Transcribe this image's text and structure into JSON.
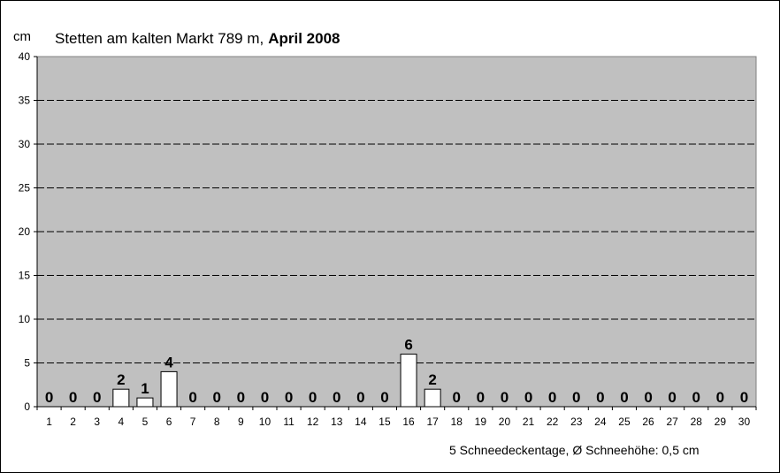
{
  "chart_data": {
    "type": "bar",
    "title_regular": "Stetten am kalten Markt 789 m,",
    "title_bold": "April 2008",
    "ylabel": "cm",
    "xlabel": "",
    "ylim": [
      0,
      40
    ],
    "yticks": [
      0,
      5,
      10,
      15,
      20,
      25,
      30,
      35,
      40
    ],
    "grid": "horizontal dashed",
    "categories": [
      "1",
      "2",
      "3",
      "4",
      "5",
      "6",
      "7",
      "8",
      "9",
      "10",
      "11",
      "12",
      "13",
      "14",
      "15",
      "16",
      "17",
      "18",
      "19",
      "20",
      "21",
      "22",
      "23",
      "24",
      "25",
      "26",
      "27",
      "28",
      "29",
      "30"
    ],
    "values": [
      0,
      0,
      0,
      2,
      1,
      4,
      0,
      0,
      0,
      0,
      0,
      0,
      0,
      0,
      0,
      6,
      2,
      0,
      0,
      0,
      0,
      0,
      0,
      0,
      0,
      0,
      0,
      0,
      0,
      0
    ],
    "data_labels": true,
    "summary": "5 Schneedeckentage,  Ø Schneehöhe:  0,5 cm",
    "colors": {
      "plot_background": "#c0c0c0",
      "bar_fill": "#ffffff",
      "bar_stroke": "#000000"
    }
  }
}
